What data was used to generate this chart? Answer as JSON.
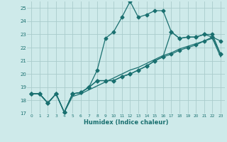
{
  "xlabel": "Humidex (Indice chaleur)",
  "bg_color": "#ceeaea",
  "grid_color": "#aacccc",
  "line_color": "#1a7070",
  "xlim": [
    -0.5,
    23.5
  ],
  "ylim": [
    17,
    25.5
  ],
  "xticks": [
    0,
    1,
    2,
    3,
    4,
    5,
    6,
    7,
    8,
    9,
    10,
    11,
    12,
    13,
    14,
    15,
    16,
    17,
    18,
    19,
    20,
    21,
    22,
    23
  ],
  "yticks": [
    17,
    18,
    19,
    20,
    21,
    22,
    23,
    24,
    25
  ],
  "series": [
    [
      18.5,
      18.5,
      17.8,
      18.5,
      17.1,
      18.5,
      18.6,
      19.0,
      20.3,
      22.7,
      23.2,
      24.3,
      25.5,
      24.3,
      24.5,
      24.8,
      24.8,
      23.2,
      22.7,
      22.8,
      22.8,
      23.0,
      23.0,
      21.5
    ],
    [
      18.5,
      18.5,
      17.8,
      18.5,
      17.1,
      18.5,
      18.6,
      19.0,
      19.5,
      19.5,
      19.5,
      19.8,
      20.0,
      20.3,
      20.6,
      21.0,
      21.3,
      23.2,
      22.7,
      22.8,
      22.8,
      23.0,
      22.8,
      22.5
    ],
    [
      18.5,
      18.5,
      17.8,
      18.5,
      17.1,
      18.5,
      18.6,
      19.0,
      19.5,
      19.5,
      19.5,
      19.8,
      20.0,
      20.3,
      20.6,
      21.0,
      21.3,
      21.5,
      21.8,
      22.0,
      22.2,
      22.5,
      22.8,
      21.5
    ],
    [
      18.5,
      18.5,
      17.8,
      18.5,
      17.1,
      18.3,
      18.5,
      18.8,
      19.1,
      19.4,
      19.7,
      20.0,
      20.3,
      20.5,
      20.8,
      21.1,
      21.4,
      21.6,
      21.9,
      22.1,
      22.3,
      22.5,
      22.7,
      21.3
    ]
  ],
  "marker_size": 2.5,
  "lw": 0.9
}
